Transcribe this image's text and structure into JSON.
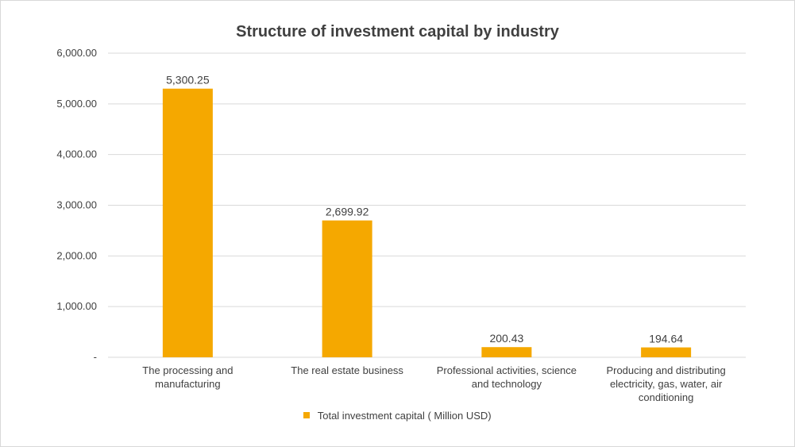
{
  "chart_data": {
    "type": "bar",
    "title": "Structure of investment capital by industry",
    "categories": [
      "The processing and manufacturing",
      "The real estate business",
      "Professional activities, science and technology",
      "Producing and distributing electricity, gas, water, air conditioning"
    ],
    "series": [
      {
        "name": "Total investment capital ( Million USD)",
        "values": [
          5300.25,
          2699.92,
          200.43,
          194.64
        ],
        "data_labels": [
          "5,300.25",
          "2,699.92",
          "200.43",
          "194.64"
        ]
      }
    ],
    "ylim": [
      0,
      6000
    ],
    "yticks": [
      0,
      1000,
      2000,
      3000,
      4000,
      5000,
      6000
    ],
    "ytick_labels": [
      "-",
      "1,000.00",
      "2,000.00",
      "3,000.00",
      "4,000.00",
      "5,000.00",
      "6,000.00"
    ],
    "xlabel": "",
    "ylabel": "",
    "grid": "horizontal",
    "legend_position": "bottom",
    "colors": {
      "bar": "#F5A800",
      "gridline": "#d9d9d9",
      "text": "#404040"
    }
  }
}
